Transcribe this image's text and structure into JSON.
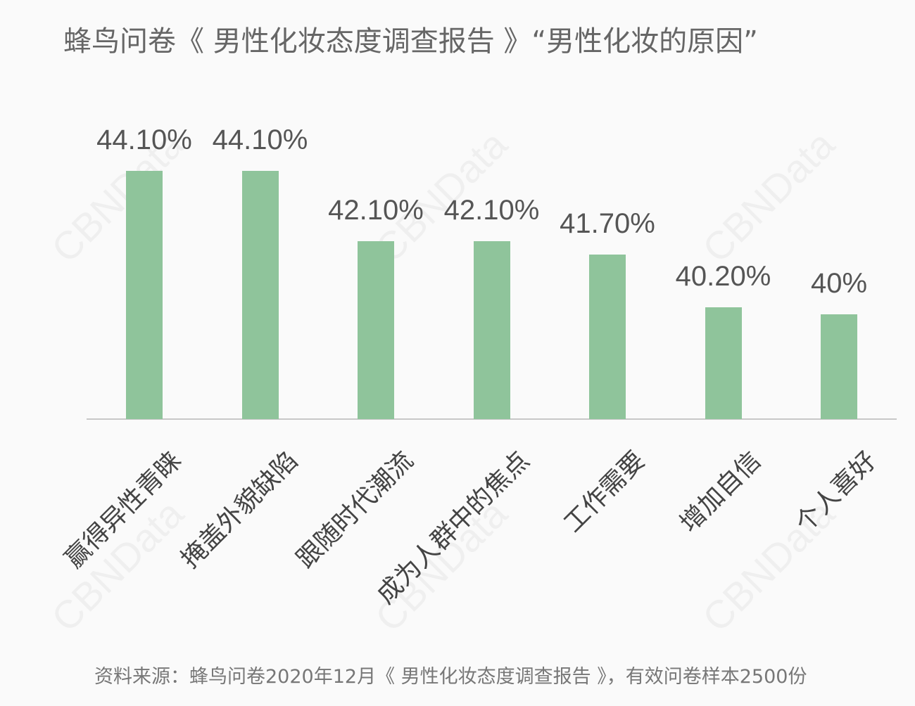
{
  "title": "蜂鸟问卷《 男性化妆态度调查报告 》“男性化妆的原因”",
  "source": "资料来源：蜂鸟问卷2020年12月《 男性化妆态度调查报告 》，有效问卷样本2500份",
  "watermark": "CBNData",
  "colors": {
    "bar": "#8fc49b",
    "axis": "#c8c8c8",
    "text": "#555555",
    "background": "#fafafa"
  },
  "chart_data": {
    "type": "bar",
    "title": "蜂鸟问卷《 男性化妆态度调查报告 》“男性化妆的原因”",
    "xlabel": "",
    "ylabel": "",
    "categories": [
      "赢得异性青睐",
      "掩盖外貌缺陷",
      "跟随时代潮流",
      "成为人群中的焦点",
      "工作需要",
      "增加自信",
      "个人喜好"
    ],
    "values": [
      44.1,
      44.1,
      42.1,
      42.1,
      41.7,
      40.2,
      40.0
    ],
    "labels": [
      "44.10%",
      "44.10%",
      "42.10%",
      "42.10%",
      "41.70%",
      "40.20%",
      "40%"
    ],
    "unit": "%",
    "grid": false,
    "legend": null,
    "source": "资料来源：蜂鸟问卷2020年12月《 男性化妆态度调查报告 》，有效问卷样本2500份"
  }
}
